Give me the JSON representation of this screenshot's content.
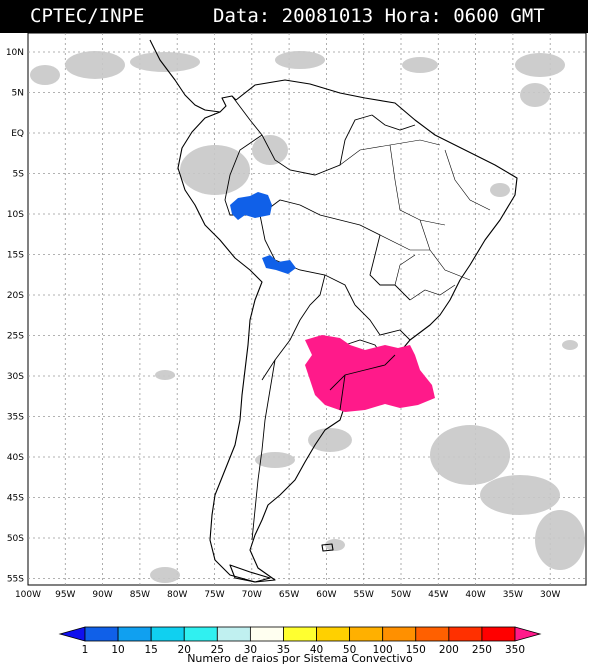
{
  "header": {
    "source": "CPTEC/INPE",
    "datetime": "Data: 20081013 Hora: 0600 GMT"
  },
  "axes": {
    "lat_labels": [
      "10N",
      "5N",
      "EQ",
      "5S",
      "10S",
      "15S",
      "20S",
      "25S",
      "30S",
      "35S",
      "40S",
      "45S",
      "50S",
      "55S"
    ],
    "lon_labels": [
      "100W",
      "95W",
      "90W",
      "85W",
      "80W",
      "75W",
      "70W",
      "65W",
      "60W",
      "55W",
      "50W",
      "45W",
      "40W",
      "35W",
      "30W"
    ]
  },
  "colorbar": {
    "title": "Numero de raios por Sistema Convectivo",
    "labels": [
      "1",
      "10",
      "15",
      "20",
      "25",
      "30",
      "35",
      "40",
      "50",
      "100",
      "150",
      "200",
      "250",
      "350"
    ],
    "colors": [
      "#1010ee",
      "#1060e8",
      "#10a0f0",
      "#10d0f0",
      "#30f0f0",
      "#c0f0f0",
      "#fffff0",
      "#ffff30",
      "#ffd000",
      "#ffb000",
      "#ff9000",
      "#ff6000",
      "#ff3000",
      "#ff0000",
      "#ff1a8a"
    ]
  },
  "colors": {
    "cloud": "#c8c8c8",
    "cell_blue": "#1060e8",
    "cell_magenta": "#ff1a8a",
    "grid": "#999999"
  }
}
